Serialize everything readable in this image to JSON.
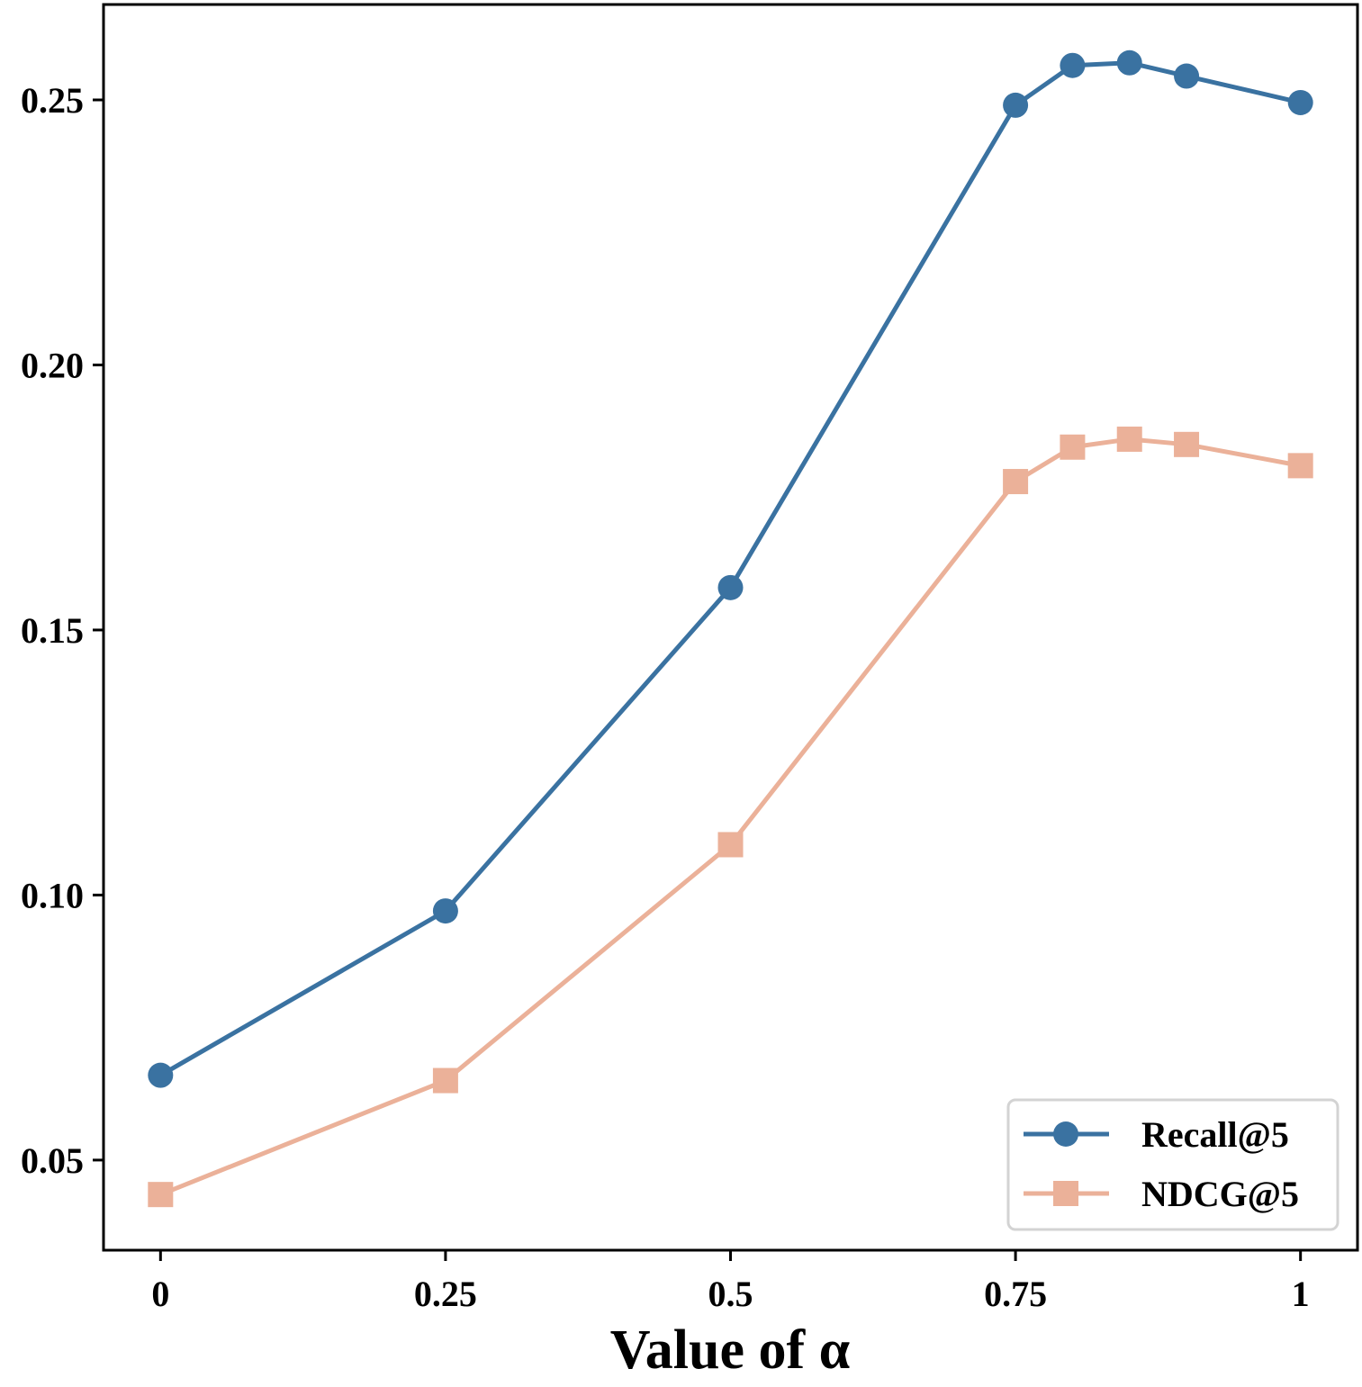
{
  "chart_data": {
    "type": "line",
    "title": "",
    "xlabel": "Value of α",
    "ylabel": "",
    "x": [
      0,
      0.25,
      0.5,
      0.75,
      0.8,
      0.85,
      0.9,
      1
    ],
    "xticks": [
      0,
      0.25,
      0.5,
      0.75,
      1
    ],
    "xtick_labels": [
      "0",
      "0.25",
      "0.5",
      "0.75",
      "1"
    ],
    "yticks": [
      0.05,
      0.1,
      0.15,
      0.2,
      0.25
    ],
    "ytick_labels": [
      "0.05",
      "0.10",
      "0.15",
      "0.20",
      "0.25"
    ],
    "xlim": [
      -0.05,
      1.05
    ],
    "ylim": [
      0.033,
      0.268
    ],
    "grid": false,
    "legend_position": "bottom-right",
    "series": [
      {
        "name": "Recall@5",
        "marker": "circle",
        "color": "#3a72a1",
        "values": [
          0.066,
          0.097,
          0.158,
          0.249,
          0.2565,
          0.257,
          0.2545,
          0.2495
        ]
      },
      {
        "name": "NDCG@5",
        "marker": "square",
        "color": "#ebb199",
        "values": [
          0.0435,
          0.065,
          0.1095,
          0.178,
          0.1845,
          0.186,
          0.185,
          0.181
        ]
      }
    ]
  }
}
